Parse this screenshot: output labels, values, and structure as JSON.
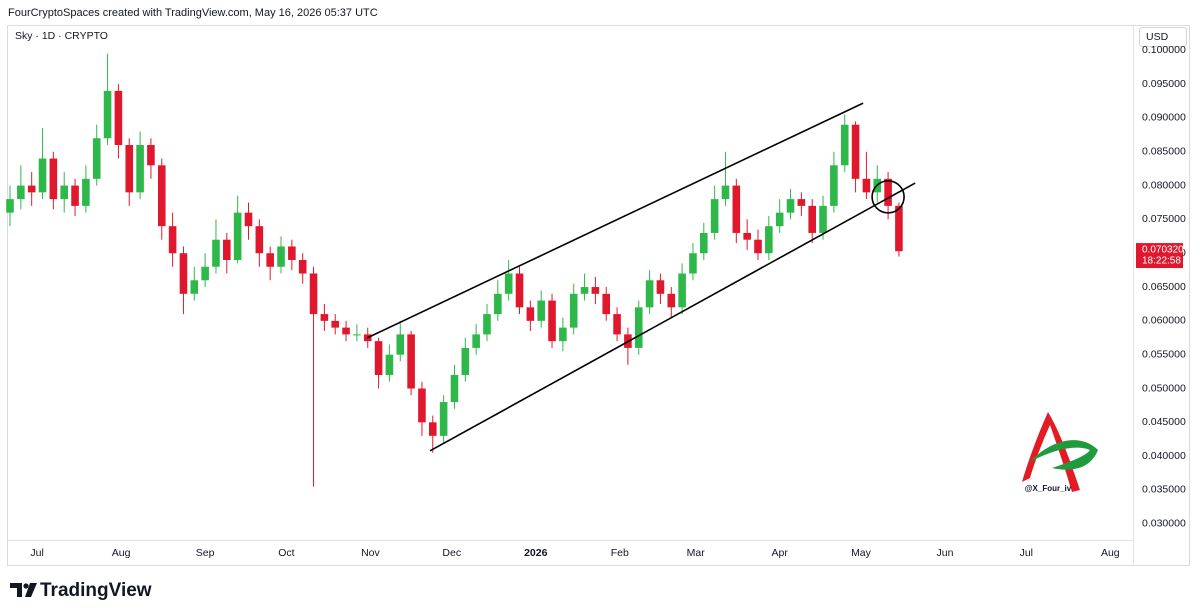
{
  "header": "FourCryptoSpaces created with TradingView.com, May 16, 2026 05:37 UTC",
  "brand": "TradingView",
  "watermark": "@X_Four_iv",
  "chart_data": {
    "type": "candlestick",
    "title": "Sky · 1D · CRYPTO",
    "currency": "USD",
    "up_color": "#2fb84a",
    "down_color": "#e0182d",
    "x": [
      -10,
      -6,
      -2,
      2,
      6,
      10,
      14,
      18,
      22,
      26,
      30,
      34,
      38,
      42,
      46,
      50,
      54,
      58,
      62,
      66,
      70,
      74,
      78,
      82,
      86,
      90,
      94,
      98,
      102,
      106,
      110,
      114,
      118,
      122,
      126,
      130,
      134,
      138,
      142,
      146,
      150,
      154,
      158,
      162,
      166,
      170,
      174,
      178,
      182,
      186,
      190,
      194,
      198,
      202,
      206,
      210,
      214,
      218,
      222,
      226,
      230,
      234,
      238,
      242,
      246,
      250,
      254,
      258,
      262,
      266,
      270,
      274,
      278,
      282,
      286,
      290,
      294,
      298,
      302,
      306,
      310,
      314,
      318
    ],
    "open": [
      0.076,
      0.078,
      0.08,
      0.079,
      0.084,
      0.078,
      0.08,
      0.077,
      0.081,
      0.087,
      0.094,
      0.086,
      0.079,
      0.086,
      0.083,
      0.074,
      0.07,
      0.064,
      0.066,
      0.068,
      0.072,
      0.069,
      0.076,
      0.074,
      0.07,
      0.068,
      0.071,
      0.069,
      0.067,
      0.061,
      0.06,
      0.059,
      0.058,
      0.058,
      0.057,
      0.052,
      0.055,
      0.058,
      0.05,
      0.045,
      0.043,
      0.048,
      0.052,
      0.056,
      0.058,
      0.061,
      0.064,
      0.067,
      0.062,
      0.06,
      0.063,
      0.057,
      0.059,
      0.064,
      0.065,
      0.064,
      0.061,
      0.058,
      0.056,
      0.062,
      0.066,
      0.064,
      0.062,
      0.067,
      0.07,
      0.073,
      0.078,
      0.08,
      0.073,
      0.072,
      0.07,
      0.074,
      0.076,
      0.078,
      0.077,
      0.073,
      0.077,
      0.083,
      0.089,
      0.081,
      0.079,
      0.081,
      0.077
    ],
    "high": [
      0.08,
      0.083,
      0.082,
      0.0885,
      0.085,
      0.082,
      0.081,
      0.083,
      0.089,
      0.0995,
      0.095,
      0.087,
      0.088,
      0.087,
      0.084,
      0.076,
      0.071,
      0.068,
      0.07,
      0.075,
      0.073,
      0.0785,
      0.0775,
      0.075,
      0.071,
      0.0725,
      0.072,
      0.07,
      0.068,
      0.0625,
      0.061,
      0.06,
      0.0595,
      0.059,
      0.0575,
      0.0565,
      0.06,
      0.0585,
      0.051,
      0.046,
      0.049,
      0.0535,
      0.0575,
      0.0595,
      0.0625,
      0.066,
      0.069,
      0.068,
      0.063,
      0.0645,
      0.064,
      0.0605,
      0.0655,
      0.067,
      0.0665,
      0.065,
      0.062,
      0.059,
      0.063,
      0.0675,
      0.067,
      0.065,
      0.0685,
      0.0715,
      0.0745,
      0.08,
      0.085,
      0.081,
      0.075,
      0.0735,
      0.0755,
      0.078,
      0.0795,
      0.079,
      0.078,
      0.0785,
      0.085,
      0.0905,
      0.0895,
      0.085,
      0.083,
      0.082,
      0.0775
    ],
    "low": [
      0.074,
      0.0765,
      0.077,
      0.078,
      0.0765,
      0.076,
      0.0755,
      0.076,
      0.08,
      0.086,
      0.084,
      0.077,
      0.078,
      0.081,
      0.072,
      0.068,
      0.061,
      0.063,
      0.065,
      0.067,
      0.067,
      0.0685,
      0.072,
      0.068,
      0.066,
      0.067,
      0.0675,
      0.0655,
      0.0355,
      0.0585,
      0.058,
      0.057,
      0.057,
      0.056,
      0.05,
      0.051,
      0.054,
      0.049,
      0.043,
      0.0405,
      0.042,
      0.047,
      0.051,
      0.055,
      0.057,
      0.06,
      0.063,
      0.061,
      0.0585,
      0.059,
      0.056,
      0.0555,
      0.058,
      0.063,
      0.0625,
      0.06,
      0.057,
      0.0535,
      0.055,
      0.061,
      0.0625,
      0.0605,
      0.061,
      0.066,
      0.069,
      0.072,
      0.077,
      0.0715,
      0.0705,
      0.069,
      0.069,
      0.073,
      0.075,
      0.0755,
      0.0715,
      0.072,
      0.076,
      0.082,
      0.079,
      0.078,
      0.0775,
      0.075,
      0.0695
    ],
    "close": [
      0.078,
      0.08,
      0.079,
      0.084,
      0.078,
      0.08,
      0.077,
      0.081,
      0.087,
      0.094,
      0.086,
      0.079,
      0.086,
      0.083,
      0.074,
      0.07,
      0.064,
      0.066,
      0.068,
      0.072,
      0.069,
      0.076,
      0.074,
      0.07,
      0.068,
      0.071,
      0.069,
      0.067,
      0.061,
      0.06,
      0.059,
      0.058,
      0.058,
      0.057,
      0.052,
      0.055,
      0.058,
      0.05,
      0.045,
      0.043,
      0.048,
      0.052,
      0.056,
      0.058,
      0.061,
      0.064,
      0.067,
      0.062,
      0.06,
      0.063,
      0.057,
      0.059,
      0.064,
      0.065,
      0.064,
      0.061,
      0.058,
      0.056,
      0.062,
      0.066,
      0.064,
      0.062,
      0.067,
      0.07,
      0.073,
      0.078,
      0.08,
      0.073,
      0.072,
      0.07,
      0.074,
      0.076,
      0.078,
      0.077,
      0.073,
      0.077,
      0.083,
      0.089,
      0.081,
      0.079,
      0.081,
      0.077,
      0.0703
    ],
    "xlim": [
      -10,
      404
    ],
    "ylim": [
      0.0276,
      0.1033
    ],
    "xticks": [
      {
        "value": 0,
        "label": "Jul"
      },
      {
        "value": 31,
        "label": "Aug"
      },
      {
        "value": 62,
        "label": "Sep"
      },
      {
        "value": 92,
        "label": "Oct"
      },
      {
        "value": 123,
        "label": "Nov"
      },
      {
        "value": 153,
        "label": "Dec"
      },
      {
        "value": 184,
        "label": "2026"
      },
      {
        "value": 215,
        "label": "Feb"
      },
      {
        "value": 243,
        "label": "Mar"
      },
      {
        "value": 274,
        "label": "Apr"
      },
      {
        "value": 304,
        "label": "May"
      },
      {
        "value": 335,
        "label": "Jun"
      },
      {
        "value": 365,
        "label": "Jul"
      },
      {
        "value": 396,
        "label": "Aug"
      }
    ],
    "yticks": [
      {
        "value": 0.03,
        "label": "0.030000"
      },
      {
        "value": 0.035,
        "label": "0.035000"
      },
      {
        "value": 0.04,
        "label": "0.040000"
      },
      {
        "value": 0.045,
        "label": "0.045000"
      },
      {
        "value": 0.05,
        "label": "0.050000"
      },
      {
        "value": 0.055,
        "label": "0.055000"
      },
      {
        "value": 0.06,
        "label": "0.060000"
      },
      {
        "value": 0.065,
        "label": "0.065000"
      },
      {
        "value": 0.07,
        "label": "0.070000"
      },
      {
        "value": 0.075,
        "label": "0.075000"
      },
      {
        "value": 0.08,
        "label": "0.080000"
      },
      {
        "value": 0.085,
        "label": "0.085000"
      },
      {
        "value": 0.09,
        "label": "0.090000"
      },
      {
        "value": 0.095,
        "label": "0.095000"
      },
      {
        "value": 0.1,
        "label": "0.100000"
      }
    ],
    "last_price": {
      "value": 0.07032,
      "label": "0.070320"
    },
    "countdown": "18:22:58",
    "trendlines": [
      {
        "x": [
          121.8,
          304.8
        ],
        "y": [
          0.05748,
          0.09219
        ]
      },
      {
        "x": [
          145,
          324
        ],
        "y": [
          0.04078,
          0.08037
        ]
      }
    ],
    "circle": {
      "x": 314,
      "y": 0.07833
    }
  }
}
